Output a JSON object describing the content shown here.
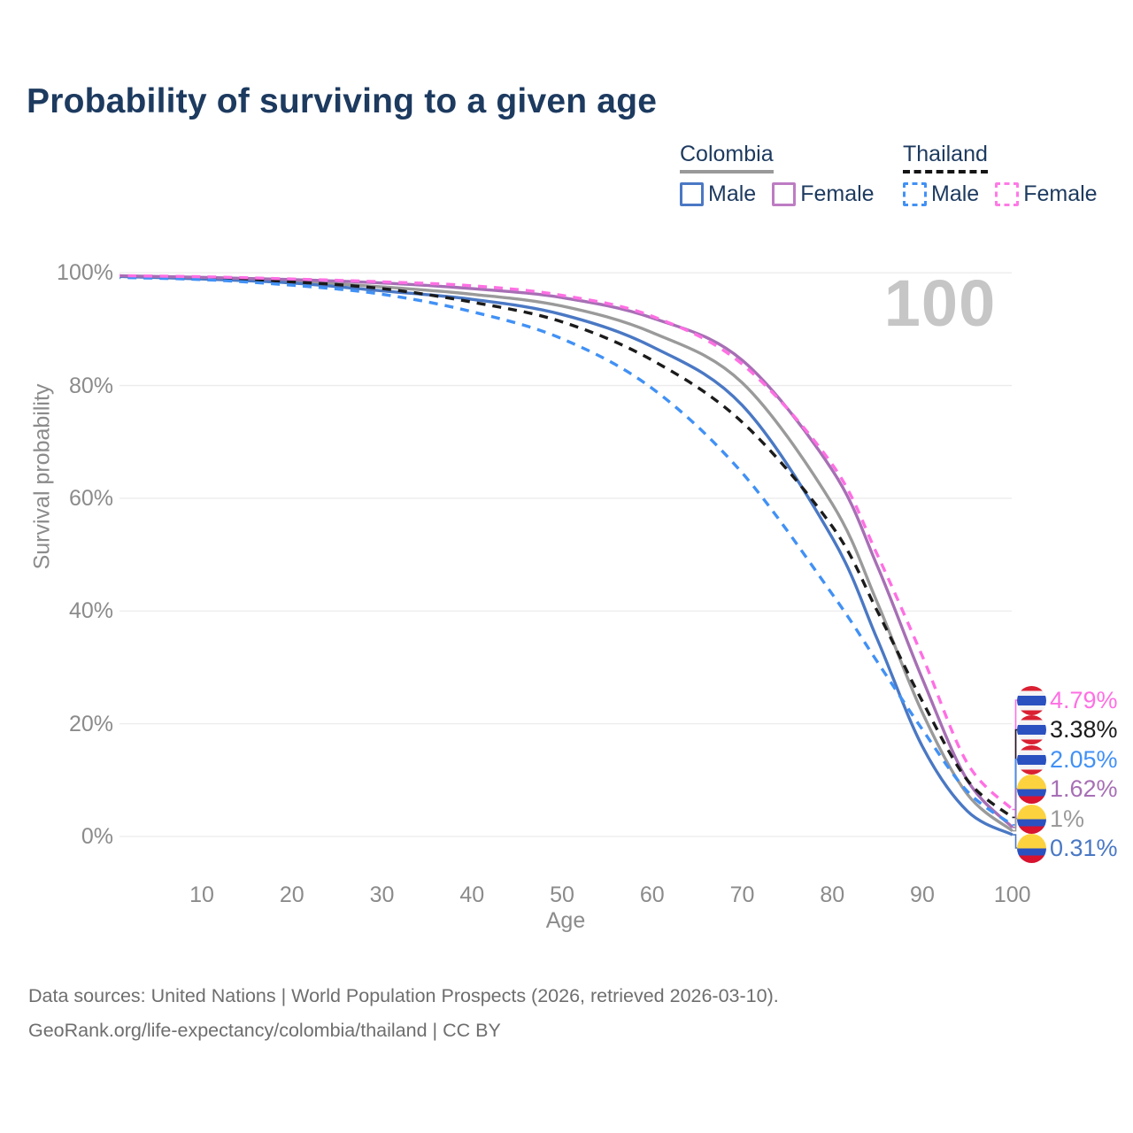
{
  "title": "Probability of surviving to a given age",
  "watermark": "100",
  "legend": {
    "groups": [
      {
        "name": "Colombia",
        "dashed": false,
        "items": [
          {
            "label": "Male",
            "color": "#4a78c4"
          },
          {
            "label": "Female",
            "color": "#bd7cc3"
          }
        ]
      },
      {
        "name": "Thailand",
        "dashed": true,
        "items": [
          {
            "label": "Male",
            "color": "#4191f5"
          },
          {
            "label": "Female",
            "color": "#ff7ae6"
          }
        ]
      }
    ]
  },
  "chart_data": {
    "type": "line",
    "title": "Probability of surviving to a given age",
    "xlabel": "Age",
    "ylabel": "Survival probability",
    "xlim": [
      0,
      100
    ],
    "ylim": [
      0,
      100
    ],
    "grid": true,
    "legend_position": "top-right",
    "xticks": [
      10,
      20,
      30,
      40,
      50,
      60,
      70,
      80,
      90,
      100
    ],
    "yticks": [
      0,
      20,
      40,
      60,
      80,
      100
    ],
    "ytick_labels": [
      "0%",
      "20%",
      "40%",
      "60%",
      "80%",
      "100%"
    ],
    "x": [
      0,
      10,
      20,
      30,
      40,
      50,
      60,
      70,
      80,
      85,
      90,
      95,
      100
    ],
    "series": [
      {
        "name": "Colombia Male",
        "country": "Colombia",
        "sex": "Male",
        "color": "#4a78c4",
        "dash": false,
        "end_label": "0.31%",
        "values": [
          99.4,
          98.9,
          98.2,
          96.8,
          95.3,
          92.6,
          86.9,
          76.5,
          53,
          35,
          16,
          4.5,
          0.31
        ]
      },
      {
        "name": "Colombia Female",
        "country": "Colombia",
        "sex": "Female",
        "color": "#a76fb5",
        "dash": false,
        "end_label": "1.62%",
        "values": [
          99.5,
          99.2,
          98.8,
          98.2,
          97.2,
          95.6,
          92.0,
          84.5,
          65,
          48,
          28,
          10,
          1.62
        ]
      },
      {
        "name": "Colombia Total",
        "country": "Colombia",
        "sex": "Total",
        "color": "#9a9a9a",
        "dash": false,
        "end_label": "1%",
        "values": [
          99.4,
          99.0,
          98.5,
          97.5,
          96.2,
          94.1,
          89.4,
          80.5,
          59,
          41.5,
          22,
          7.5,
          1.0
        ]
      },
      {
        "name": "Thailand Male",
        "country": "Thailand",
        "sex": "Male",
        "color": "#4191f5",
        "dash": true,
        "end_label": "2.05%",
        "values": [
          99.2,
          98.8,
          97.8,
          96.2,
          93.1,
          88.3,
          79.5,
          64.5,
          43,
          31,
          19,
          8,
          2.05
        ]
      },
      {
        "name": "Thailand Female",
        "country": "Thailand",
        "sex": "Female",
        "color": "#ff6fe3",
        "dash": true,
        "end_label": "4.79%",
        "values": [
          99.5,
          99.3,
          98.9,
          98.4,
          97.7,
          96.0,
          92.3,
          83.8,
          66,
          50,
          32,
          13,
          4.79
        ]
      },
      {
        "name": "Thailand Total",
        "country": "Thailand",
        "sex": "Total",
        "color": "#1b1b1b",
        "dash": true,
        "end_label": "3.38%",
        "values": [
          99.4,
          99.1,
          98.4,
          97.2,
          94.8,
          91.3,
          84.5,
          73.5,
          55,
          40,
          24,
          10,
          3.38
        ]
      }
    ]
  },
  "end_labels": [
    {
      "value": "4.79%",
      "flag": "thailand",
      "color": "#ff6fe3",
      "series": 4
    },
    {
      "value": "3.38%",
      "flag": "thailand",
      "color": "#1b1b1b",
      "series": 5
    },
    {
      "value": "2.05%",
      "flag": "thailand",
      "color": "#4191f5",
      "series": 3
    },
    {
      "value": "1.62%",
      "flag": "colombia",
      "color": "#a76fb5",
      "series": 1
    },
    {
      "value": "1%",
      "flag": "colombia",
      "color": "#9a9a9a",
      "series": 2
    },
    {
      "value": "0.31%",
      "flag": "colombia",
      "color": "#4a78c4",
      "series": 0
    }
  ],
  "flags": {
    "thailand": {
      "red": "#da2032",
      "white": "#f4f4f6",
      "blue": "#2b51c0"
    },
    "colombia": {
      "yellow": "#fcd23f",
      "blue": "#2b51c0",
      "red": "#d8122f"
    }
  },
  "footer": {
    "line1": "Data sources: United Nations | World Population Prospects (2026, retrieved 2026-03-10).",
    "line2": "GeoRank.org/life-expectancy/colombia/thailand | CC BY"
  }
}
